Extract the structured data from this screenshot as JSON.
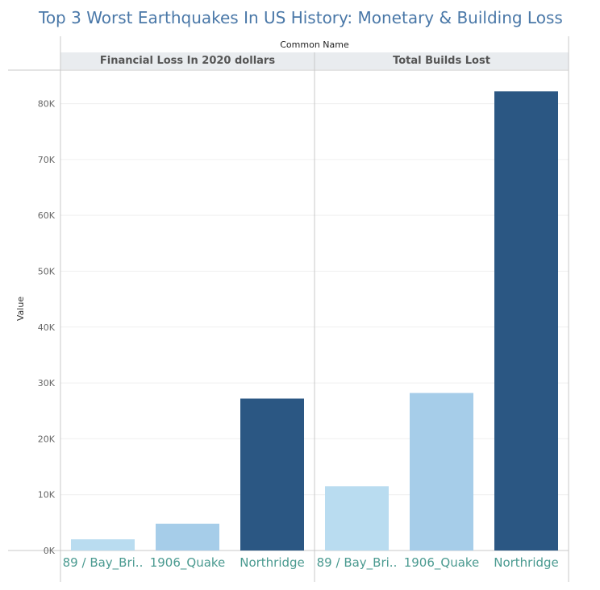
{
  "chart_data": {
    "type": "bar",
    "title": "Top 3 Worst Earthquakes In US History: Monetary & Building Loss",
    "column_group_label": "Common Name",
    "ylabel": "Value",
    "ylim": [
      0,
      86000
    ],
    "yticks": [
      0,
      10000,
      20000,
      30000,
      40000,
      50000,
      60000,
      70000,
      80000
    ],
    "ytick_labels": [
      "0K",
      "10K",
      "20K",
      "30K",
      "40K",
      "50K",
      "60K",
      "70K",
      "80K"
    ],
    "categories": [
      "89 / Bay_Bri..",
      "1906_Quake",
      "Northridge"
    ],
    "panels": [
      {
        "name": "Financial Loss In 2020 dollars",
        "values": [
          2000,
          4800,
          27200
        ]
      },
      {
        "name": "Total Builds Lost",
        "values": [
          11500,
          28200,
          82200
        ]
      }
    ],
    "colors": [
      "#b9dcf0",
      "#a6cde9",
      "#2b5783"
    ],
    "grid": true
  }
}
